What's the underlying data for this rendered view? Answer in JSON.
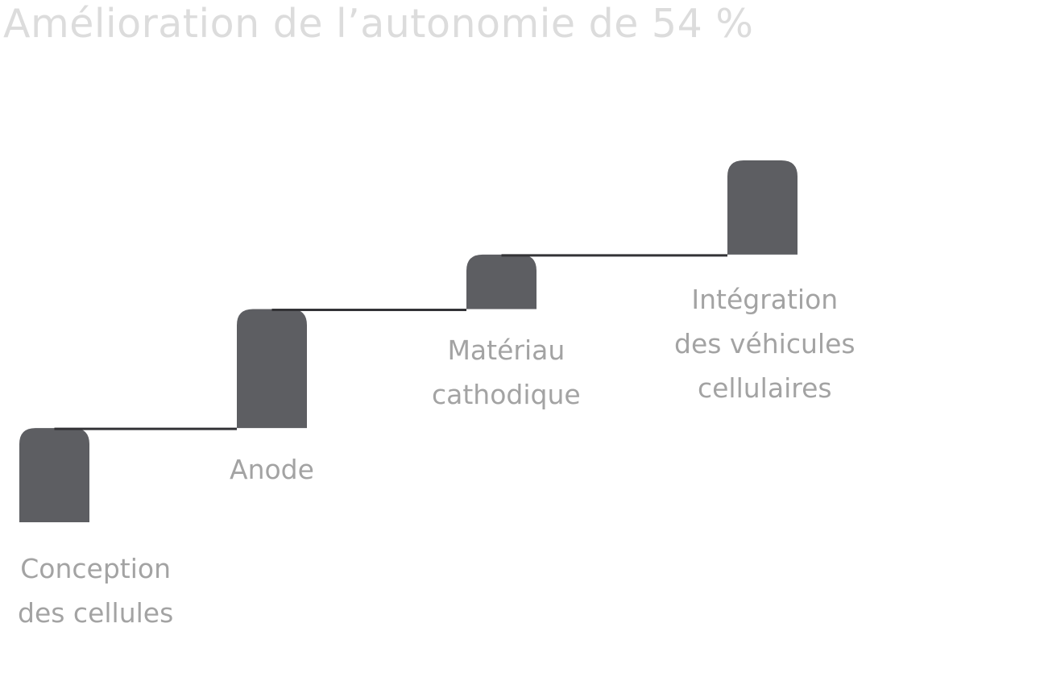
{
  "title": "Amélioration de l’autonomie de 54 %",
  "colors": {
    "title": "#dcdcdc",
    "block": "#5d5e62",
    "connector": "#333336",
    "label": "#a3a3a3"
  },
  "chart_data": {
    "type": "bar",
    "title": "Amélioration de l’autonomie de 54 %",
    "categories": [
      [
        "Conception",
        "des cellules"
      ],
      [
        "Anode"
      ],
      [
        "Matériau",
        "cathodique"
      ],
      [
        "Intégration",
        "des véhicules",
        "cellulaires"
      ]
    ],
    "series": [
      {
        "step_start": [
          0,
          19,
          43,
          54
        ],
        "step_end": [
          19,
          43,
          54,
          73
        ]
      }
    ]
  }
}
